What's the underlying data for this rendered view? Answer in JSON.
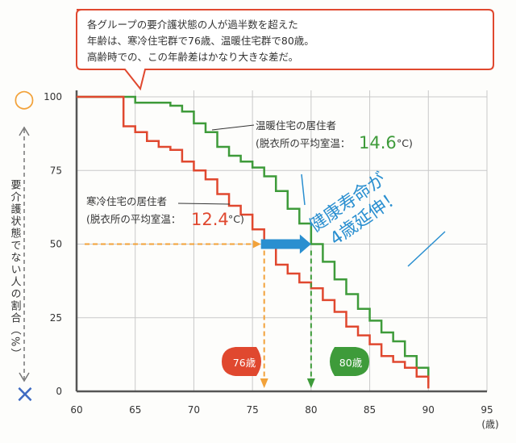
{
  "callout": {
    "lines": [
      "各グループの要介護状態の人が過半数を超えた",
      "年齢は、寒冷住宅群で76歳、温暖住宅群で80歳。",
      "高齢時での、この年齢差はかなり大きな差だ。"
    ]
  },
  "colors": {
    "cold": "#e0482f",
    "warm": "#3e9b3a",
    "arrow": "#2a8fd0",
    "grid": "#c9c9c9"
  },
  "chart_data": {
    "type": "line",
    "xlabel": "(歳)",
    "ylabel": "要介護状態でない人の割合（%）",
    "xlim": [
      60,
      95
    ],
    "ylim": [
      0,
      100
    ],
    "xticks": [
      60,
      65,
      70,
      75,
      80,
      85,
      90,
      95
    ],
    "yticks": [
      0,
      25,
      50,
      75,
      100
    ],
    "grid": true,
    "series": [
      {
        "name": "温暖住宅の居住者",
        "sub": "(脱衣所の平均室温：",
        "temp": "14.6",
        "unit": "°C)",
        "x": [
          64,
          65,
          68,
          69,
          70,
          71,
          72,
          73,
          74,
          75,
          76,
          77,
          78,
          79,
          80,
          81,
          82,
          83,
          84,
          85,
          86,
          87,
          88,
          89,
          90
        ],
        "y": [
          100,
          98,
          97,
          95,
          91,
          88,
          83,
          80,
          78,
          76,
          73,
          68,
          62,
          57,
          50,
          44,
          38,
          33,
          28,
          24,
          20,
          17,
          12,
          8,
          3
        ]
      },
      {
        "name": "寒冷住宅の居住者",
        "sub": "(脱衣所の平均室温：",
        "temp": "12.4",
        "unit": "°C)",
        "x": [
          63,
          64,
          65,
          66,
          67,
          68,
          69,
          70,
          71,
          72,
          73,
          74,
          75,
          76,
          77,
          78,
          79,
          80,
          81,
          82,
          83,
          84,
          85,
          86,
          87,
          88,
          89,
          90
        ],
        "y": [
          100,
          90,
          88,
          85,
          83,
          82,
          78,
          75,
          72,
          67,
          63,
          60,
          55,
          50,
          43,
          40,
          37,
          35,
          31,
          27,
          22,
          19,
          16,
          12,
          10,
          8,
          5,
          1
        ]
      }
    ],
    "markers": {
      "cold_age": "76歳",
      "warm_age": "80歳"
    },
    "arrow_text": [
      "健康寿命が",
      "4歳延伸！"
    ],
    "symbols": {
      "top": "○",
      "bottom": "×"
    }
  }
}
